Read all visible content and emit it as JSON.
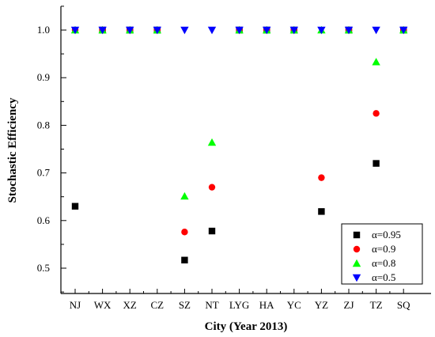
{
  "chart_data": {
    "type": "scatter",
    "xlabel": "City (Year 2013)",
    "ylabel": "Stochastic Efficiency",
    "categories": [
      "NJ",
      "WX",
      "XZ",
      "CZ",
      "SZ",
      "NT",
      "LYG",
      "HA",
      "YC",
      "YZ",
      "ZJ",
      "TZ",
      "SQ"
    ],
    "ylim": [
      0.45,
      1.05
    ],
    "yticks": [
      0.5,
      0.6,
      0.7,
      0.8,
      0.9,
      1.0
    ],
    "ytick_labels": [
      "0.5",
      "0.6",
      "0.7",
      "0.8",
      "0.9",
      "1.0"
    ],
    "grid": false,
    "legend_position": "bottom-right",
    "series": [
      {
        "name": "α=0.95",
        "marker": "square",
        "color": "#000000",
        "values": [
          0.63,
          1.0,
          1.0,
          1.0,
          0.517,
          0.578,
          1.0,
          1.0,
          1.0,
          0.619,
          1.0,
          0.72,
          1.0
        ]
      },
      {
        "name": "α=0.9",
        "marker": "circle",
        "color": "#ff0000",
        "values": [
          1.0,
          1.0,
          1.0,
          1.0,
          0.576,
          0.67,
          1.0,
          1.0,
          1.0,
          0.69,
          1.0,
          0.825,
          1.0
        ]
      },
      {
        "name": "α=0.8",
        "marker": "triangle-up",
        "color": "#00ff00",
        "values": [
          1.0,
          1.0,
          1.0,
          1.0,
          0.651,
          0.764,
          1.0,
          1.0,
          1.0,
          1.0,
          1.0,
          0.933,
          1.0
        ]
      },
      {
        "name": "α=0.5",
        "marker": "triangle-down",
        "color": "#0000ff",
        "values": [
          1.0,
          1.0,
          1.0,
          1.0,
          1.0,
          1.0,
          1.0,
          1.0,
          1.0,
          1.0,
          1.0,
          1.0,
          1.0
        ]
      }
    ]
  }
}
